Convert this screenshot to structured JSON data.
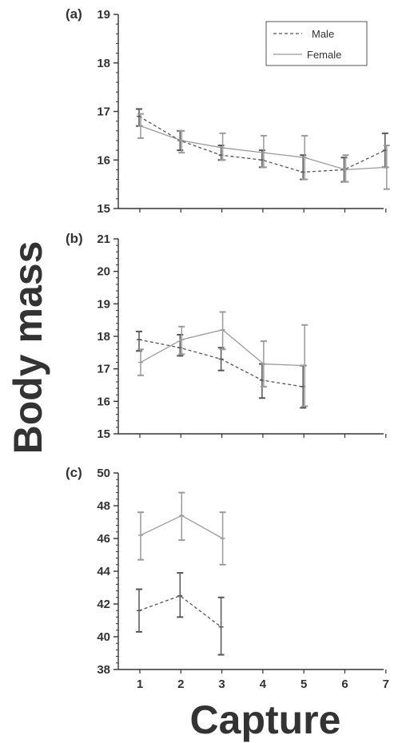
{
  "chart_data": {
    "type": "line",
    "ylabel": "Body mass",
    "xlabel": "Capture",
    "x_ticks": [
      "1",
      "2",
      "3",
      "4",
      "5",
      "6",
      "7"
    ],
    "legend": {
      "placement": "top-right",
      "entries": [
        {
          "name": "Male",
          "style": "dashed"
        },
        {
          "name": "Female",
          "style": "solid"
        }
      ]
    },
    "colors": {
      "male": "#555555",
      "female": "#9a9a9a",
      "axis": "#333333"
    },
    "panels": [
      {
        "label": "(a)",
        "ylim": [
          15,
          19
        ],
        "yticks": [
          "15",
          "16",
          "17",
          "18",
          "19"
        ],
        "series": [
          {
            "name": "Male",
            "x": [
              1,
              2,
              3,
              4,
              5,
              6,
              7
            ],
            "values": [
              16.9,
              16.4,
              16.1,
              16.0,
              15.75,
              15.8,
              16.2
            ],
            "err_low": [
              16.7,
              16.2,
              16.0,
              15.85,
              15.6,
              15.55,
              15.85
            ],
            "err_high": [
              17.05,
              16.6,
              16.3,
              16.2,
              16.1,
              16.05,
              16.55
            ]
          },
          {
            "name": "Female",
            "x": [
              1,
              2,
              3,
              4,
              5,
              6,
              7
            ],
            "values": [
              16.7,
              16.4,
              16.25,
              16.15,
              16.05,
              15.8,
              15.85
            ],
            "err_low": [
              16.45,
              16.15,
              16.0,
              15.85,
              15.6,
              15.55,
              15.4
            ],
            "err_high": [
              16.95,
              16.6,
              16.55,
              16.5,
              16.5,
              16.1,
              16.3
            ]
          }
        ]
      },
      {
        "label": "(b)",
        "ylim": [
          15,
          21
        ],
        "yticks": [
          "15",
          "16",
          "17",
          "18",
          "19",
          "20",
          "21"
        ],
        "series": [
          {
            "name": "Male",
            "x": [
              1,
              2,
              3,
              4,
              5
            ],
            "values": [
              17.9,
              17.65,
              17.3,
              16.65,
              16.45
            ],
            "err_low": [
              17.55,
              17.4,
              16.95,
              16.1,
              15.8
            ],
            "err_high": [
              18.15,
              18.05,
              17.65,
              17.15,
              17.1
            ]
          },
          {
            "name": "Female",
            "x": [
              1,
              2,
              3,
              4,
              5
            ],
            "values": [
              17.2,
              17.9,
              18.2,
              17.15,
              17.1
            ],
            "err_low": [
              16.8,
              17.45,
              17.6,
              16.45,
              15.85
            ],
            "err_high": [
              17.6,
              18.3,
              18.75,
              17.85,
              18.35
            ]
          }
        ]
      },
      {
        "label": "(c)",
        "ylim": [
          38,
          50
        ],
        "yticks": [
          "38",
          "40",
          "42",
          "44",
          "46",
          "48",
          "50"
        ],
        "series": [
          {
            "name": "Male",
            "x": [
              1,
              2,
              3
            ],
            "values": [
              41.6,
              42.5,
              40.6
            ],
            "err_low": [
              40.3,
              41.2,
              38.9
            ],
            "err_high": [
              42.9,
              43.9,
              42.4
            ]
          },
          {
            "name": "Female",
            "x": [
              1,
              2,
              3
            ],
            "values": [
              46.2,
              47.4,
              46.0
            ],
            "err_low": [
              44.7,
              45.9,
              44.4
            ],
            "err_high": [
              47.6,
              48.8,
              47.6
            ]
          }
        ]
      }
    ]
  }
}
